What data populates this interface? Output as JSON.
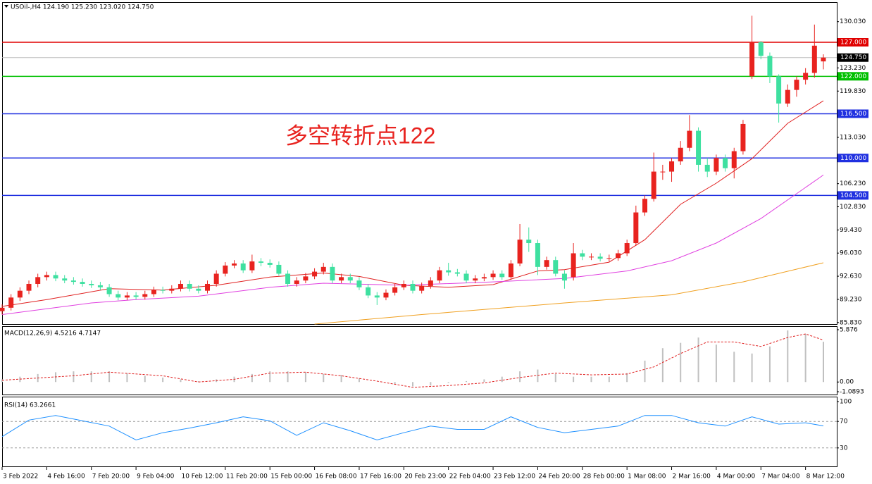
{
  "chart_data": [
    {
      "type": "candlestick",
      "title": "USOil-,H4 124.190 125.230 123.020 124.750",
      "annotation": "多空转折点122",
      "annotation_color": "#e8231f",
      "up_color": "#e8231f",
      "down_color": "#3ee0a0",
      "open": [
        87.5,
        88.0,
        89.5,
        90.5,
        91.5,
        92.5,
        92.8,
        92.3,
        92.0,
        91.8,
        91.5,
        91.3,
        91.0,
        90.0,
        89.5,
        89.8,
        89.6,
        90.0,
        90.6,
        90.5,
        90.8,
        91.5,
        90.8,
        90.5,
        91.5,
        93.0,
        94.2,
        94.5,
        93.5,
        94.8,
        94.6,
        94.3,
        93.0,
        91.5,
        92.0,
        92.6,
        93.3,
        94.0,
        92.0,
        92.5,
        92.0,
        91.0,
        89.8,
        89.5,
        90.2,
        91.0,
        91.5,
        90.5,
        91.2,
        92.0,
        93.5,
        93.2,
        93.0,
        92.0,
        92.3,
        92.5,
        93.0,
        92.5,
        94.5,
        98.0,
        97.5,
        94.0,
        95.0,
        93.0,
        92.5,
        96.0,
        95.5,
        95.5,
        95.2,
        95.3,
        96.0,
        97.5,
        102.0,
        104.0,
        108.0,
        108.0,
        109.5,
        111.5,
        114.0,
        109.0,
        108.0,
        110.0,
        108.5,
        111.0,
        122.0,
        127.0,
        125.0,
        122.0,
        118.0,
        120.0,
        121.5,
        122.5,
        124.19
      ],
      "high": [
        88.5,
        90.0,
        91.0,
        92.0,
        93.0,
        93.3,
        93.3,
        92.8,
        92.5,
        92.3,
        92.0,
        91.8,
        91.5,
        90.5,
        90.3,
        90.3,
        90.5,
        91.1,
        91.1,
        91.3,
        92.0,
        92.0,
        91.3,
        92.0,
        93.5,
        94.7,
        95.0,
        95.0,
        95.8,
        95.3,
        95.1,
        94.8,
        93.5,
        92.5,
        93.1,
        93.8,
        94.6,
        94.5,
        93.0,
        93.0,
        92.5,
        91.5,
        90.3,
        90.7,
        91.5,
        92.0,
        92.0,
        91.7,
        92.5,
        94.0,
        94.6,
        93.7,
        93.5,
        92.8,
        93.0,
        93.5,
        93.5,
        95.0,
        100.3,
        99.8,
        98.0,
        95.5,
        95.5,
        93.5,
        97.5,
        96.5,
        96.0,
        96.0,
        95.8,
        96.5,
        98.0,
        103.0,
        104.5,
        110.8,
        109.0,
        110.0,
        112.5,
        116.3,
        114.5,
        110.0,
        110.5,
        110.5,
        111.5,
        115.6,
        130.9,
        127.2,
        125.5,
        122.3,
        120.8,
        122.0,
        123.2,
        129.6,
        125.23
      ],
      "low": [
        87.0,
        87.6,
        89.0,
        90.0,
        91.0,
        92.0,
        91.9,
        91.6,
        91.4,
        91.1,
        90.9,
        90.6,
        89.6,
        89.1,
        89.1,
        89.2,
        89.2,
        89.6,
        90.1,
        90.1,
        90.4,
        90.4,
        90.1,
        90.1,
        91.1,
        92.6,
        93.8,
        93.1,
        93.1,
        94.1,
        93.9,
        92.7,
        91.1,
        91.1,
        91.6,
        92.2,
        92.9,
        91.6,
        91.6,
        91.6,
        90.6,
        89.4,
        88.4,
        89.1,
        89.8,
        90.6,
        90.1,
        90.1,
        90.8,
        91.6,
        92.7,
        92.6,
        91.6,
        91.6,
        91.9,
        92.1,
        92.1,
        92.1,
        94.1,
        96.2,
        92.8,
        93.6,
        92.6,
        90.8,
        92.0,
        95.0,
        95.0,
        94.8,
        94.8,
        94.9,
        95.6,
        97.1,
        101.5,
        103.6,
        106.8,
        106.5,
        109.0,
        111.0,
        108.0,
        107.2,
        107.5,
        108.0,
        107.0,
        110.5,
        121.6,
        124.5,
        121.0,
        115.2,
        117.5,
        119.0,
        120.8,
        121.8,
        123.02
      ],
      "close": [
        88.0,
        89.5,
        90.5,
        91.5,
        92.5,
        92.8,
        92.3,
        92.0,
        91.8,
        91.5,
        91.3,
        91.0,
        90.0,
        89.5,
        89.8,
        89.6,
        90.0,
        90.6,
        90.5,
        90.8,
        91.5,
        90.8,
        90.5,
        91.5,
        93.0,
        94.2,
        94.5,
        93.5,
        94.8,
        94.6,
        94.3,
        93.0,
        91.5,
        92.0,
        92.6,
        93.3,
        94.0,
        92.0,
        92.5,
        92.0,
        91.0,
        89.8,
        89.5,
        90.2,
        91.0,
        91.5,
        90.5,
        91.2,
        92.0,
        93.5,
        93.2,
        93.0,
        92.0,
        92.3,
        92.5,
        93.0,
        92.5,
        94.5,
        98.0,
        97.5,
        94.0,
        95.0,
        93.0,
        92.0,
        96.0,
        95.5,
        95.5,
        95.2,
        95.3,
        96.0,
        97.5,
        102.0,
        104.0,
        108.0,
        108.0,
        109.5,
        111.5,
        114.0,
        109.0,
        108.0,
        110.0,
        108.5,
        111.0,
        115.0,
        127.0,
        125.0,
        122.0,
        118.0,
        120.0,
        121.5,
        122.5,
        126.5,
        124.75
      ],
      "overlays": [
        {
          "color": "#e02020",
          "x": [
            0,
            5,
            12,
            18,
            24,
            30,
            36,
            40,
            45,
            50,
            55,
            60,
            63,
            68,
            72,
            76,
            80,
            84,
            88,
            92
          ],
          "values": [
            88.2,
            89.2,
            90.8,
            90.6,
            91.3,
            92.5,
            93.1,
            92.6,
            91.3,
            91.0,
            91.4,
            93.4,
            93.6,
            94.7,
            98.0,
            103.2,
            106.3,
            109.9,
            115.1,
            118.4
          ]
        },
        {
          "color": "#e040e0",
          "x": [
            0,
            10,
            15,
            22,
            30,
            36,
            45,
            55,
            63,
            70,
            75,
            80,
            85,
            92
          ],
          "values": [
            87.0,
            88.7,
            89.2,
            89.7,
            91.0,
            91.6,
            91.3,
            91.8,
            92.3,
            93.4,
            94.9,
            97.5,
            101.1,
            107.5
          ]
        },
        {
          "color": "#f0a020",
          "x": [
            35,
            47,
            63,
            75,
            83,
            92
          ],
          "values": [
            85.6,
            87.0,
            88.7,
            89.9,
            91.8,
            94.6
          ]
        }
      ],
      "levels": [
        {
          "value": 127,
          "label": "127.000",
          "color": "#e00000"
        },
        {
          "value": 122,
          "label": "122.000",
          "color": "#00c000"
        },
        {
          "value": 116.5,
          "label": "116.500",
          "color": "#2030e0"
        },
        {
          "value": 110,
          "label": "110.000",
          "color": "#2030e0"
        },
        {
          "value": 104.5,
          "label": "104.500",
          "color": "#2030e0"
        }
      ],
      "current_price": {
        "value": 124.75,
        "label": "124.750",
        "color": "#000000"
      },
      "ylim": [
        85.6,
        132.9
      ],
      "yticks": [
        {
          "value": 130.03,
          "label": "130.030"
        },
        {
          "value": 123.23,
          "label": "123.230"
        },
        {
          "value": 119.83,
          "label": "119.830"
        },
        {
          "value": 113.03,
          "label": "113.030"
        },
        {
          "value": 106.23,
          "label": "106.230"
        },
        {
          "value": 102.83,
          "label": "102.830"
        },
        {
          "value": 99.43,
          "label": "99.430"
        },
        {
          "value": 96.03,
          "label": "96.030"
        },
        {
          "value": 92.63,
          "label": "92.630"
        },
        {
          "value": 89.23,
          "label": "89.230"
        },
        {
          "value": 85.83,
          "label": "85.830"
        }
      ],
      "xlim": [
        0,
        93.5
      ],
      "xticks": [
        {
          "value": 0,
          "label": "3 Feb 2022"
        },
        {
          "value": 5,
          "label": "4 Feb 16:00"
        },
        {
          "value": 10,
          "label": "7 Feb 20:00"
        },
        {
          "value": 15,
          "label": "9 Feb 04:00"
        },
        {
          "value": 20,
          "label": "10 Feb 12:00"
        },
        {
          "value": 25,
          "label": "11 Feb 20:00"
        },
        {
          "value": 30,
          "label": "15 Feb 00:00"
        },
        {
          "value": 35,
          "label": "16 Feb 08:00"
        },
        {
          "value": 40,
          "label": "17 Feb 16:00"
        },
        {
          "value": 45,
          "label": "20 Feb 23:00"
        },
        {
          "value": 50,
          "label": "22 Feb 04:00"
        },
        {
          "value": 55,
          "label": "23 Feb 12:00"
        },
        {
          "value": 60,
          "label": "24 Feb 20:00"
        },
        {
          "value": 65,
          "label": "28 Feb 00:00"
        },
        {
          "value": 70,
          "label": "1 Mar 08:00"
        },
        {
          "value": 75,
          "label": "2 Mar 16:00"
        },
        {
          "value": 80,
          "label": "4 Mar 00:00"
        },
        {
          "value": 85,
          "label": "7 Mar 04:00"
        },
        {
          "value": 90,
          "label": "8 Mar 12:00"
        }
      ]
    },
    {
      "type": "macd",
      "title": "MACD(12,26,9) 4.5216 4.7147",
      "series": [
        {
          "kind": "bar",
          "color": "#c0c0c0",
          "x": [
            0,
            2,
            4,
            6,
            8,
            10,
            12,
            14,
            16,
            18,
            20,
            22,
            24,
            26,
            28,
            30,
            32,
            34,
            36,
            38,
            40,
            42,
            44,
            46,
            48,
            50,
            52,
            54,
            56,
            58,
            60,
            62,
            64,
            66,
            68,
            70,
            72,
            74,
            76,
            78,
            80,
            82,
            84,
            86,
            88,
            90,
            92
          ],
          "values": [
            0.3,
            0.6,
            0.9,
            1.1,
            1.2,
            1.2,
            1.2,
            1.0,
            0.7,
            0.5,
            0.3,
            0.1,
            0.3,
            0.6,
            0.9,
            1.2,
            1.2,
            1.1,
            0.9,
            0.8,
            0.4,
            0.0,
            -0.3,
            -0.5,
            -0.4,
            -0.1,
            0.1,
            0.3,
            0.6,
            1.2,
            1.4,
            0.9,
            0.6,
            0.6,
            0.6,
            1.0,
            2.4,
            3.8,
            4.4,
            5.0,
            4.2,
            3.4,
            3.2,
            4.0,
            5.8,
            5.4,
            4.52
          ]
        },
        {
          "kind": "line",
          "color": "#e02020",
          "x": [
            0,
            8,
            12,
            18,
            22,
            26,
            30,
            34,
            38,
            42,
            46,
            50,
            54,
            58,
            62,
            66,
            70,
            73,
            76,
            79,
            82,
            85,
            88,
            90,
            92
          ],
          "values": [
            0.2,
            0.7,
            1.1,
            0.7,
            0.0,
            0.3,
            1.0,
            1.1,
            0.7,
            0.1,
            -0.6,
            -0.4,
            -0.1,
            0.5,
            1.0,
            0.8,
            0.9,
            1.7,
            3.2,
            4.5,
            4.5,
            4.0,
            5.0,
            5.4,
            4.71
          ]
        }
      ],
      "ylim": [
        -1.0893,
        5.876
      ],
      "yticks": [
        5.876,
        {
          "value": 0,
          "label": "0.00"
        },
        -1.0893
      ],
      "xlim": [
        0,
        93.5
      ]
    },
    {
      "type": "line",
      "title": "RSI(14) 63.2661",
      "series": [
        {
          "color": "#1e90ff",
          "x": [
            0,
            3,
            6,
            9,
            12,
            15,
            18,
            21,
            24,
            27,
            30,
            33,
            36,
            39,
            42,
            45,
            48,
            51,
            54,
            57,
            60,
            63,
            66,
            69,
            72,
            75,
            78,
            81,
            84,
            87,
            90,
            92
          ],
          "values": [
            47,
            72,
            79,
            71,
            63,
            42,
            53,
            60,
            68,
            77,
            71,
            49,
            68,
            56,
            42,
            53,
            63,
            58,
            58,
            77,
            61,
            53,
            58,
            63,
            79,
            79,
            68,
            63,
            77,
            66,
            68,
            63.27
          ]
        }
      ],
      "levels": [
        70,
        30
      ],
      "ylim": [
        0,
        100
      ],
      "yticks": [
        100,
        70,
        30
      ],
      "xlim": [
        0,
        93.5
      ]
    }
  ]
}
